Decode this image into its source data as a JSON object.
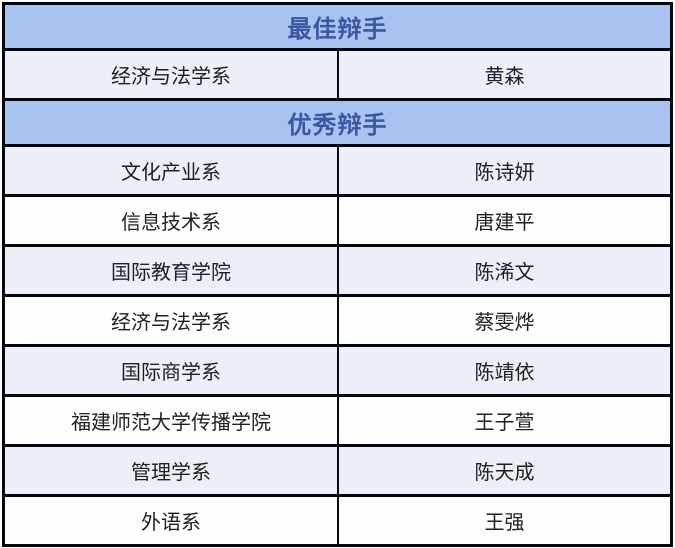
{
  "table": {
    "sections": [
      {
        "header": "最佳辩手",
        "rows": [
          {
            "department": "经济与法学系",
            "name": "黄森"
          }
        ]
      },
      {
        "header": "优秀辩手",
        "rows": [
          {
            "department": "文化产业系",
            "name": "陈诗妍"
          },
          {
            "department": "信息技术系",
            "name": "唐建平"
          },
          {
            "department": "国际教育学院",
            "name": "陈浠文"
          },
          {
            "department": "经济与法学系",
            "name": "蔡雯烨"
          },
          {
            "department": "国际商学系",
            "name": "陈靖依"
          },
          {
            "department": "福建师范大学传播学院",
            "name": "王子萱"
          },
          {
            "department": "管理学系",
            "name": "陈天成"
          },
          {
            "department": "外语系",
            "name": "王强"
          }
        ]
      }
    ],
    "columns": [
      "department",
      "name"
    ]
  },
  "colors": {
    "header_bg": "#a9c3f0",
    "header_text": "#3c56a3",
    "row_alt_bg": "#edeff8",
    "row_bg": "#fdfefe",
    "border": "#06060e",
    "body_text": "#1f1f1f"
  }
}
